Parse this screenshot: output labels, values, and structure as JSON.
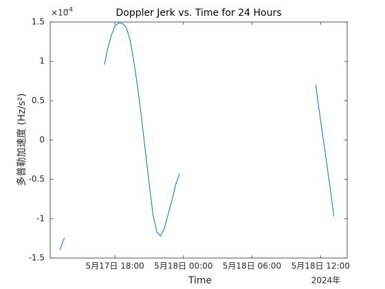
{
  "chart_data": {
    "type": "line",
    "title": "Doppler Jerk vs. Time for 24 Hours",
    "x_label": "Time",
    "x_secondary_label": "2024年",
    "y_label": "多普勒加速度 (Hz/s²)",
    "y_exponent": {
      "base": "×10",
      "power": "-4"
    },
    "x": [
      "2024-05-17T13:10",
      "2024-05-17T13:30",
      "2024-05-17T13:35",
      "2024-05-17T15:00",
      "2024-05-17T17:05",
      "2024-05-17T17:20",
      "2024-05-17T17:40",
      "2024-05-17T18:00",
      "2024-05-17T18:20",
      "2024-05-17T18:40",
      "2024-05-17T19:00",
      "2024-05-17T19:20",
      "2024-05-17T19:40",
      "2024-05-17T20:00",
      "2024-05-17T20:20",
      "2024-05-17T20:40",
      "2024-05-17T21:00",
      "2024-05-17T21:20",
      "2024-05-17T21:40",
      "2024-05-17T22:00",
      "2024-05-17T22:20",
      "2024-05-17T22:40",
      "2024-05-17T23:00",
      "2024-05-17T23:20",
      "2024-05-17T23:40",
      "2024-05-18T06:00",
      "2024-05-18T11:35",
      "2024-05-18T11:50",
      "2024-05-18T12:05",
      "2024-05-18T12:20",
      "2024-05-18T12:35",
      "2024-05-18T12:50",
      "2024-05-18T13:10"
    ],
    "series": [
      {
        "name": "Doppler Jerk",
        "color": "#0072bd",
        "values": [
          -1.4,
          -1.27,
          -1.24,
          null,
          0.96,
          1.14,
          1.32,
          1.45,
          1.49,
          1.48,
          1.43,
          1.27,
          0.99,
          0.66,
          0.28,
          -0.14,
          -0.56,
          -0.95,
          -1.17,
          -1.22,
          -1.12,
          -0.94,
          -0.76,
          -0.56,
          -0.43,
          null,
          0.7,
          0.42,
          0.17,
          -0.08,
          -0.34,
          -0.6,
          -0.97
        ]
      }
    ],
    "xlim": [
      "2024-05-17T12:20",
      "2024-05-18T14:20"
    ],
    "xticks": [
      {
        "value": "2024-05-17T18:00",
        "label": "5月17日 18:00"
      },
      {
        "value": "2024-05-18T00:00",
        "label": "5月18日 00:00"
      },
      {
        "value": "2024-05-18T06:00",
        "label": "5月18日 06:00"
      },
      {
        "value": "2024-05-18T12:00",
        "label": "5月18日 12:00"
      }
    ],
    "ylim": [
      -1.5,
      1.5
    ],
    "yticks": [
      -1.5,
      -1,
      -0.5,
      0,
      0.5,
      1,
      1.5
    ],
    "grid": false
  }
}
